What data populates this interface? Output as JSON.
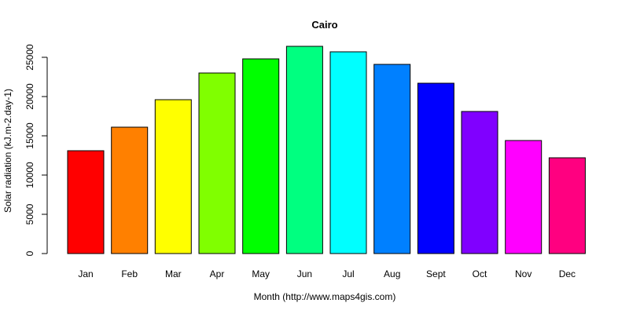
{
  "chart_data": {
    "type": "bar",
    "title": "Cairo",
    "xlabel": "Month (http://www.maps4gis.com)",
    "ylabel": "Solar radiation (kJ.m-2.day-1)",
    "categories": [
      "Jan",
      "Feb",
      "Mar",
      "Apr",
      "May",
      "Jun",
      "Jul",
      "Aug",
      "Sept",
      "Oct",
      "Nov",
      "Dec"
    ],
    "values": [
      13100,
      16100,
      19600,
      23000,
      24800,
      26400,
      25700,
      24100,
      21700,
      18100,
      14400,
      12200
    ],
    "colors": [
      "#FF0000",
      "#FF8000",
      "#FFFF00",
      "#80FF00",
      "#00FF00",
      "#00FF80",
      "#00FFFF",
      "#0080FF",
      "#0000FF",
      "#8000FF",
      "#FF00FF",
      "#FF0080"
    ],
    "yticks": [
      0,
      5000,
      10000,
      15000,
      20000,
      25000
    ],
    "ylim": [
      0,
      26400
    ],
    "grid": false,
    "legend": "none"
  }
}
